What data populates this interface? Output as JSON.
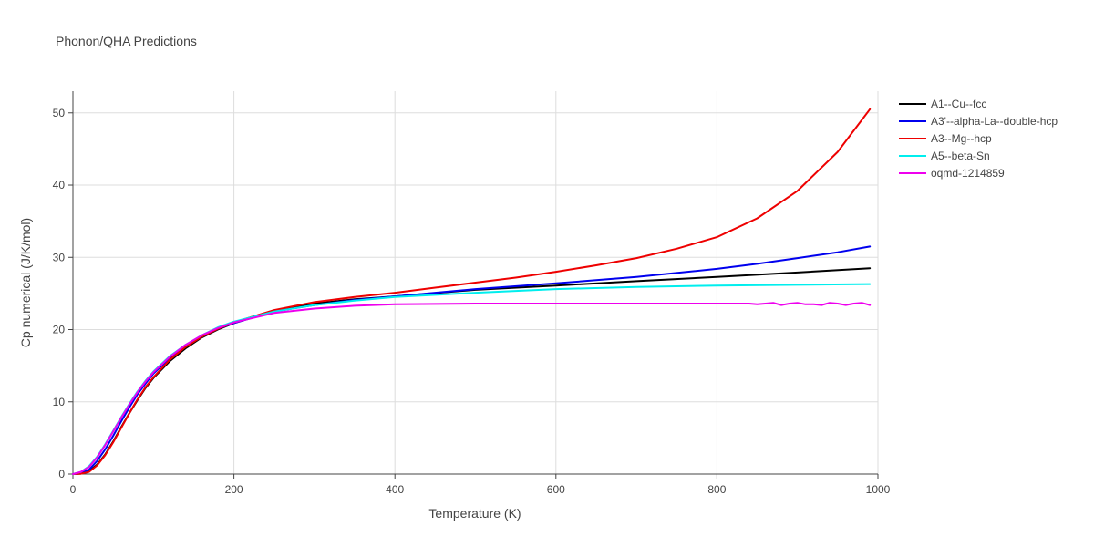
{
  "chart_data": {
    "type": "line",
    "title": "Phonon/QHA Predictions",
    "xlabel": "Temperature (K)",
    "ylabel": "Cp numerical (J/K/mol)",
    "xlim": [
      0,
      1000
    ],
    "ylim": [
      0,
      53
    ],
    "xticks": [
      0,
      200,
      400,
      600,
      800,
      1000
    ],
    "yticks": [
      0,
      10,
      20,
      30,
      40,
      50
    ],
    "grid": true,
    "legend_position": "top-right",
    "series": [
      {
        "name": "A1--Cu--fcc",
        "color": "#000000",
        "x": [
          0,
          10,
          20,
          30,
          40,
          50,
          60,
          70,
          80,
          90,
          100,
          120,
          140,
          160,
          180,
          200,
          250,
          300,
          350,
          400,
          500,
          600,
          700,
          800,
          900,
          990
        ],
        "y": [
          0,
          0.05,
          0.4,
          1.3,
          2.7,
          4.5,
          6.5,
          8.4,
          10.2,
          11.9,
          13.3,
          15.6,
          17.4,
          18.9,
          20.0,
          20.9,
          22.6,
          23.6,
          24.2,
          24.6,
          25.5,
          26.1,
          26.7,
          27.3,
          27.9,
          28.5
        ]
      },
      {
        "name": "A3'--alpha-La--double-hcp",
        "color": "#0000ee",
        "x": [
          0,
          10,
          20,
          30,
          40,
          50,
          60,
          70,
          80,
          90,
          100,
          120,
          140,
          160,
          180,
          200,
          250,
          300,
          350,
          400,
          500,
          600,
          700,
          800,
          850,
          900,
          950,
          990
        ],
        "y": [
          0,
          0.1,
          0.6,
          1.8,
          3.4,
          5.3,
          7.3,
          9.2,
          11.0,
          12.5,
          13.9,
          16.0,
          17.7,
          19.0,
          20.1,
          20.9,
          22.5,
          23.4,
          24.1,
          24.6,
          25.6,
          26.4,
          27.3,
          28.4,
          29.1,
          29.9,
          30.7,
          31.5
        ]
      },
      {
        "name": "A3--Mg--hcp",
        "color": "#ee0000",
        "x": [
          0,
          10,
          20,
          30,
          40,
          50,
          60,
          70,
          80,
          90,
          100,
          120,
          140,
          160,
          180,
          200,
          250,
          300,
          350,
          400,
          450,
          500,
          550,
          600,
          650,
          700,
          750,
          800,
          850,
          900,
          950,
          990
        ],
        "y": [
          0,
          0.05,
          0.3,
          1.2,
          2.6,
          4.4,
          6.4,
          8.4,
          10.3,
          12.0,
          13.4,
          15.8,
          17.6,
          19.0,
          20.1,
          21.0,
          22.7,
          23.8,
          24.5,
          25.1,
          25.8,
          26.5,
          27.2,
          28.0,
          28.9,
          29.9,
          31.2,
          32.8,
          35.4,
          39.2,
          44.6,
          50.5
        ]
      },
      {
        "name": "A5--beta-Sn",
        "color": "#00eeee",
        "x": [
          0,
          10,
          20,
          30,
          40,
          50,
          60,
          70,
          80,
          90,
          100,
          120,
          140,
          160,
          180,
          200,
          250,
          300,
          350,
          400,
          500,
          600,
          700,
          800,
          900,
          990
        ],
        "y": [
          0,
          0.3,
          1.1,
          2.4,
          4.1,
          6.0,
          7.9,
          9.7,
          11.4,
          12.9,
          14.2,
          16.3,
          17.9,
          19.2,
          20.3,
          21.1,
          22.5,
          23.4,
          24.0,
          24.5,
          25.1,
          25.6,
          25.9,
          26.1,
          26.2,
          26.3
        ]
      },
      {
        "name": "oqmd-1214859",
        "color": "#ee00ee",
        "x": [
          0,
          10,
          20,
          30,
          40,
          50,
          60,
          70,
          80,
          90,
          100,
          120,
          140,
          160,
          180,
          200,
          250,
          300,
          350,
          400,
          500,
          600,
          700,
          800,
          840,
          850,
          860,
          870,
          880,
          890,
          900,
          910,
          920,
          930,
          940,
          950,
          960,
          970,
          980,
          990
        ],
        "y": [
          0,
          0.3,
          1.0,
          2.3,
          4.0,
          5.9,
          7.8,
          9.6,
          11.3,
          12.8,
          14.1,
          16.2,
          17.9,
          19.2,
          20.2,
          21.0,
          22.3,
          22.9,
          23.3,
          23.5,
          23.6,
          23.6,
          23.6,
          23.6,
          23.6,
          23.5,
          23.6,
          23.7,
          23.4,
          23.6,
          23.7,
          23.5,
          23.5,
          23.4,
          23.7,
          23.6,
          23.4,
          23.6,
          23.7,
          23.4
        ]
      }
    ]
  }
}
